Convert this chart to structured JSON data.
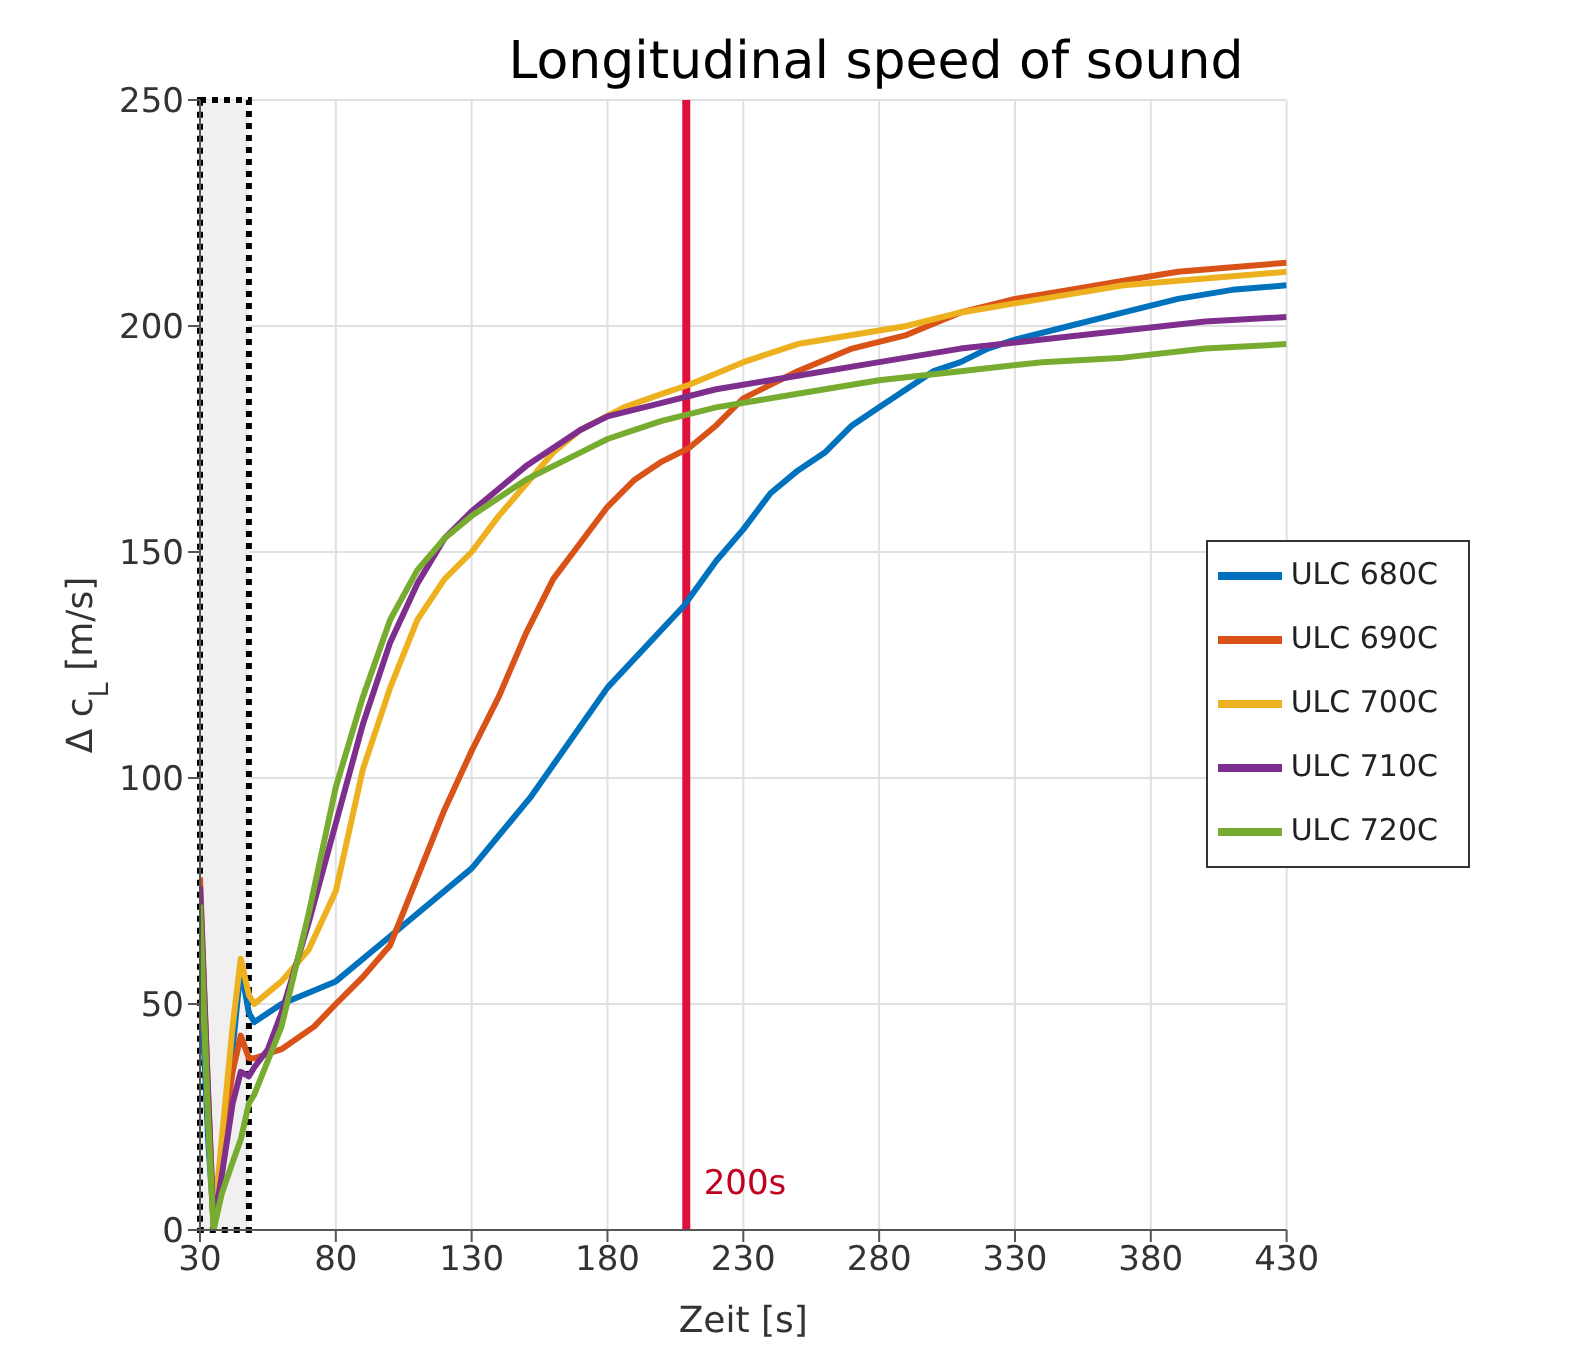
{
  "chart_data": {
    "type": "line",
    "title": "Longitudinal speed of sound",
    "xlabel": "Zeit [s]",
    "ylabel": "Δ c$_{L}$ [m/s]",
    "xlim": [
      30,
      430
    ],
    "xticks": [
      30,
      80,
      130,
      180,
      230,
      280,
      330,
      380,
      430
    ],
    "ylim": [
      0,
      250
    ],
    "yticks": [
      0,
      50,
      100,
      150,
      200,
      250
    ],
    "grid": true,
    "legend": "right",
    "line_style": "solid",
    "marker": "none",
    "series": [
      {
        "name": "ULC 680C",
        "color": "#0072bd",
        "x": [
          30,
          33,
          35,
          38,
          42,
          45,
          48,
          50,
          60,
          80,
          100,
          130,
          152,
          180,
          208,
          220,
          230,
          240,
          250,
          260,
          270,
          280,
          290,
          300,
          310,
          320,
          330,
          350,
          370,
          390,
          410,
          430
        ],
        "values": [
          60,
          20,
          2,
          15,
          40,
          58,
          48,
          46,
          50,
          55,
          65,
          80,
          96,
          120,
          138,
          148,
          155,
          163,
          168,
          172,
          178,
          182,
          186,
          190,
          192,
          195,
          197,
          200,
          203,
          206,
          208,
          209
        ]
      },
      {
        "name": "ULC 690C",
        "color": "#d95319",
        "x": [
          30,
          33,
          35,
          38,
          42,
          45,
          48,
          50,
          60,
          72,
          80,
          90,
          100,
          110,
          120,
          130,
          140,
          150,
          160,
          170,
          180,
          190,
          200,
          210,
          220,
          230,
          250,
          270,
          290,
          310,
          330,
          350,
          370,
          390,
          410,
          430
        ],
        "values": [
          78,
          30,
          2,
          18,
          35,
          43,
          38,
          38,
          40,
          45,
          50,
          56,
          63,
          78,
          93,
          106,
          118,
          132,
          144,
          152,
          160,
          166,
          170,
          173,
          178,
          184,
          190,
          195,
          198,
          203,
          206,
          208,
          210,
          212,
          213,
          214
        ]
      },
      {
        "name": "ULC 700C",
        "color": "#edb120",
        "x": [
          30,
          33,
          35,
          38,
          42,
          45,
          48,
          50,
          60,
          70,
          80,
          90,
          100,
          110,
          120,
          130,
          140,
          150,
          160,
          170,
          186,
          200,
          210,
          230,
          250,
          270,
          290,
          310,
          330,
          350,
          370,
          390,
          410,
          430
        ],
        "values": [
          70,
          25,
          0,
          20,
          45,
          60,
          52,
          50,
          55,
          62,
          75,
          102,
          120,
          135,
          144,
          150,
          158,
          165,
          172,
          177,
          182,
          185,
          187,
          192,
          196,
          198,
          200,
          203,
          205,
          207,
          209,
          210,
          211,
          212
        ]
      },
      {
        "name": "ULC 710C",
        "color": "#7e2f8e",
        "x": [
          30,
          33,
          35,
          38,
          42,
          45,
          48,
          50,
          55,
          60,
          70,
          80,
          90,
          100,
          110,
          120,
          130,
          140,
          150,
          160,
          170,
          180,
          200,
          220,
          250,
          280,
          310,
          340,
          370,
          400,
          430
        ],
        "values": [
          76,
          30,
          1,
          12,
          28,
          35,
          34,
          36,
          40,
          48,
          68,
          90,
          112,
          130,
          143,
          153,
          159,
          164,
          169,
          173,
          177,
          180,
          183,
          186,
          189,
          192,
          195,
          197,
          199,
          201,
          202
        ]
      },
      {
        "name": "ULC 720C",
        "color": "#77ac30",
        "x": [
          30,
          33,
          35,
          38,
          42,
          45,
          48,
          50,
          60,
          70,
          80,
          90,
          100,
          110,
          120,
          130,
          140,
          150,
          160,
          170,
          180,
          190,
          200,
          220,
          250,
          280,
          310,
          340,
          370,
          400,
          430
        ],
        "values": [
          72,
          25,
          0,
          8,
          15,
          20,
          28,
          30,
          45,
          70,
          98,
          118,
          135,
          146,
          153,
          158,
          162,
          166,
          169,
          172,
          175,
          177,
          179,
          182,
          185,
          188,
          190,
          192,
          193,
          195,
          196
        ]
      }
    ],
    "ref_lines": [
      {
        "axis": "x",
        "value": 209,
        "label": "200s",
        "color": "#e0103c"
      }
    ],
    "bands": [
      {
        "axis": "x",
        "from": 30,
        "to": 48,
        "color": "#f0f0f0"
      }
    ]
  }
}
